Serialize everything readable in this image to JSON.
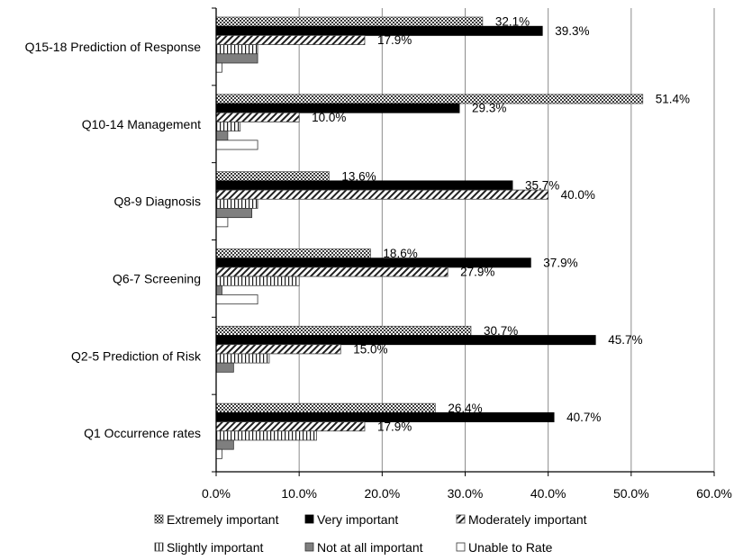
{
  "chart_data": {
    "type": "bar",
    "orientation": "horizontal",
    "categories": [
      "Q15-18 Prediction of Response",
      "Q10-14 Management",
      "Q8-9 Diagnosis",
      "Q6-7 Screening",
      "Q2-5 Prediction of Risk",
      "Q1 Occurrence rates"
    ],
    "series": [
      {
        "name": "Extremely important",
        "values": [
          32.1,
          51.4,
          13.6,
          18.6,
          30.7,
          26.4
        ],
        "labels": [
          "32.1%",
          "51.4%",
          "13.6%",
          "18.6%",
          "30.7%",
          "26.4%"
        ]
      },
      {
        "name": "Very important",
        "values": [
          39.3,
          29.3,
          35.7,
          37.9,
          45.7,
          40.7
        ],
        "labels": [
          "39.3%",
          "29.3%",
          "35.7%",
          "37.9%",
          "45.7%",
          "40.7%"
        ]
      },
      {
        "name": "Moderately important",
        "values": [
          17.9,
          10.0,
          40.0,
          27.9,
          15.0,
          17.9
        ],
        "labels": [
          "17.9%",
          "10.0%",
          "40.0%",
          "27.9%",
          "15.0%",
          "17.9%"
        ]
      },
      {
        "name": "Slightly important",
        "values": [
          5.0,
          2.9,
          5.0,
          10.0,
          6.4,
          12.1
        ],
        "labels": [
          "",
          "",
          "",
          "",
          "",
          ""
        ]
      },
      {
        "name": "Not at all important",
        "values": [
          5.0,
          1.4,
          4.3,
          0.7,
          2.1,
          2.1
        ],
        "labels": [
          "",
          "",
          "",
          "",
          "",
          ""
        ]
      },
      {
        "name": "Unable to Rate",
        "values": [
          0.7,
          5.0,
          1.4,
          5.0,
          0.0,
          0.7
        ],
        "labels": [
          "",
          "",
          "",
          "",
          "",
          ""
        ]
      }
    ],
    "xlim": [
      0,
      60
    ],
    "xticks": [
      "0.0%",
      "10.0%",
      "20.0%",
      "30.0%",
      "40.0%",
      "50.0%",
      "60.0%"
    ],
    "grid": true,
    "legend_position": "bottom",
    "title": "",
    "xlabel": "",
    "ylabel": ""
  }
}
